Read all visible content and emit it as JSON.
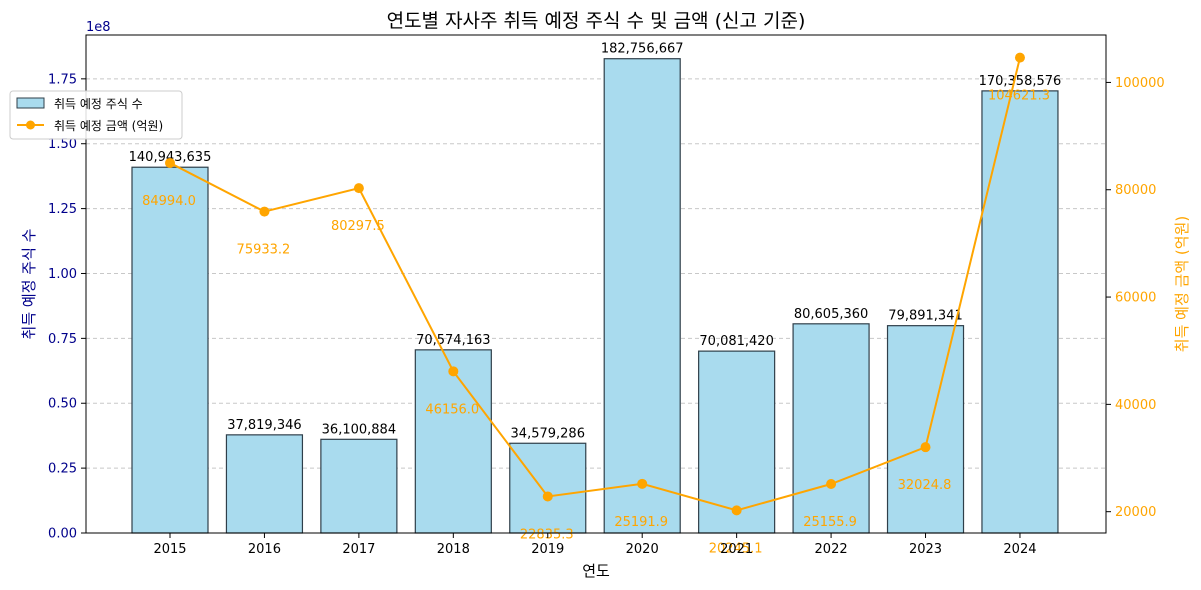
{
  "chart_data": {
    "type": "bar",
    "title": "연도별 자사주 취득 예정 주식 수 및 금액 (신고 기준)",
    "xlabel": "연도",
    "ylabel": "취득 예정 주식 수",
    "y2label": "취득 예정 금액 (억원)",
    "y_offset_text": "1e8",
    "categories": [
      "2015",
      "2016",
      "2017",
      "2018",
      "2019",
      "2020",
      "2021",
      "2022",
      "2023",
      "2024"
    ],
    "series": [
      {
        "name": "취득 예정 주식 수",
        "type": "bar",
        "axis": "left",
        "values": [
          140943635,
          37819346,
          36100884,
          70574163,
          34579286,
          182756667,
          70081420,
          80605360,
          79891341,
          170358576
        ],
        "labels": [
          "140,943,635",
          "37,819,346",
          "36,100,884",
          "70,574,163",
          "34,579,286",
          "182,756,667",
          "70,081,420",
          "80,605,360",
          "79,891,341",
          "170,358,576"
        ],
        "color": "#a9dbee"
      },
      {
        "name": "취득 예정 금액 (억원)",
        "type": "line",
        "axis": "right",
        "values": [
          84994.0,
          75933.2,
          80297.5,
          46156.0,
          22835.3,
          25191.9,
          20245.1,
          25155.9,
          32024.8,
          104621.3
        ],
        "labels": [
          "84994.0",
          "75933.2",
          "80297.5",
          "46156.0",
          "22835.3",
          "25191.9",
          "20245.1",
          "25155.9",
          "32024.8",
          "104621.3"
        ],
        "color": "#ffa500"
      }
    ],
    "y_ticks": [
      "0.00",
      "0.25",
      "0.50",
      "0.75",
      "1.00",
      "1.25",
      "1.50",
      "1.75"
    ],
    "y2_ticks": [
      "20000",
      "40000",
      "60000",
      "80000",
      "100000"
    ],
    "ylim": [
      0,
      191894500
    ],
    "y2lim": [
      16027.3,
      108839.1
    ],
    "grid": true,
    "legend_position": "upper-left",
    "colors": {
      "left_axis": "#00008b",
      "right_axis": "#ffa500",
      "bar_edge": "#2f3f4a",
      "grid": "#c8c8c8"
    }
  }
}
